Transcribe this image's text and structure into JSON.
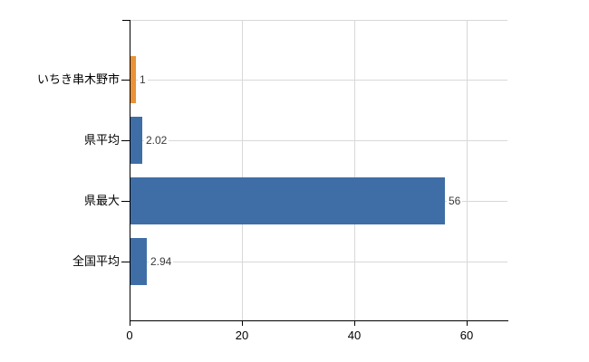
{
  "chart_data": {
    "type": "bar",
    "orientation": "horizontal",
    "title": "",
    "xlabel": "",
    "ylabel": "",
    "categories": [
      "いちき串木野市",
      "県平均",
      "県最大",
      "全国平均"
    ],
    "values": [
      1,
      2.02,
      56,
      2.94
    ],
    "value_labels": [
      "1",
      "2.02",
      "56",
      "2.94"
    ],
    "bar_colors": [
      "#eb9237",
      "#3f6ea6",
      "#3f6ea6",
      "#3f6ea6"
    ],
    "xlim": [
      0,
      67
    ],
    "x_ticks": [
      0,
      20,
      40,
      60
    ],
    "x_tick_labels": [
      "0",
      "20",
      "40",
      "60"
    ],
    "grid": true,
    "legend": false,
    "colors": {
      "default_bar": "#3f6ea6",
      "highlight_bar": "#eb9237",
      "gridline": "#d8d8d8",
      "axis": "#000000",
      "value_label_text": "#3a3a3a"
    }
  }
}
